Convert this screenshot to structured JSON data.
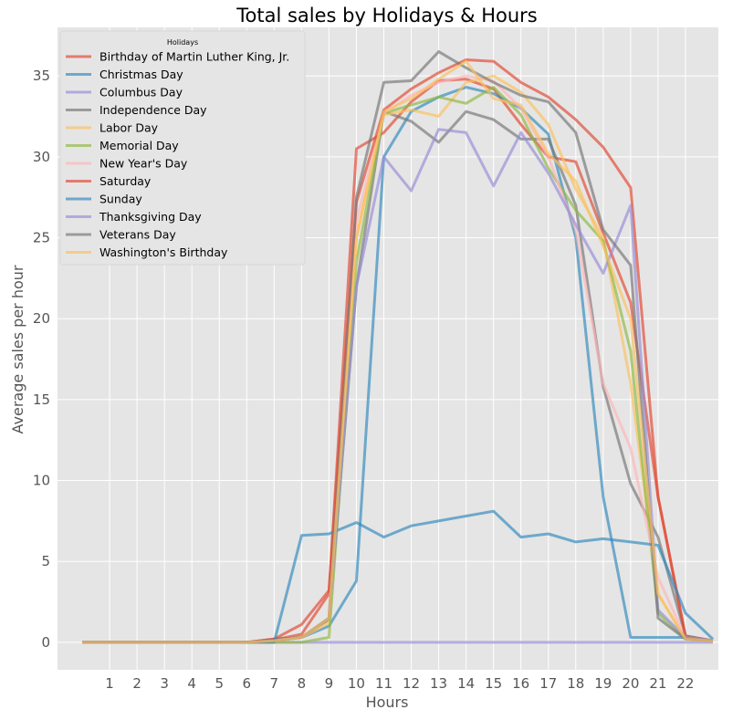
{
  "chart_data": {
    "type": "line",
    "title": "Total sales by Holidays & Hours",
    "xlabel": "Hours",
    "ylabel": "Average sales per hour",
    "xlim": [
      -0.9,
      23.2
    ],
    "ylim": [
      -1.7,
      38.0
    ],
    "x_ticks": [
      1,
      2,
      3,
      4,
      5,
      6,
      7,
      8,
      9,
      10,
      11,
      12,
      13,
      14,
      15,
      16,
      17,
      18,
      19,
      20,
      21,
      22
    ],
    "y_ticks": [
      0,
      5,
      10,
      15,
      20,
      25,
      30,
      35
    ],
    "grid": true,
    "background": "#e5e5e5",
    "legend": {
      "title": "Holidays",
      "position": "top-left"
    },
    "x": [
      0,
      1,
      2,
      3,
      4,
      5,
      6,
      7,
      8,
      9,
      10,
      11,
      12,
      13,
      14,
      15,
      16,
      17,
      18,
      19,
      20,
      21,
      22,
      23
    ],
    "series": [
      {
        "name": "Birthday of Martin Luther King, Jr.",
        "color": "#E24A33",
        "values": [
          0,
          0,
          0,
          0,
          0,
          0,
          0,
          0.15,
          0.5,
          3.0,
          30.5,
          31.5,
          33.4,
          34.7,
          34.8,
          34.2,
          32.0,
          30.0,
          29.7,
          25.3,
          21.0,
          9.0,
          0.4,
          0.1
        ]
      },
      {
        "name": "Christmas Day",
        "color": "#348ABD",
        "values": [
          0,
          0,
          0,
          0,
          0,
          0,
          0,
          0.1,
          0.3,
          1.0,
          3.8,
          30.0,
          32.8,
          33.7,
          34.3,
          33.9,
          33.0,
          31.4,
          25.0,
          9.0,
          0.3,
          0.3,
          0.3,
          0.1
        ]
      },
      {
        "name": "Columbus Day",
        "color": "#988ED5",
        "values": [
          0,
          0,
          0,
          0,
          0,
          0,
          0,
          0,
          0,
          0,
          0,
          0,
          0,
          0,
          0,
          0,
          0,
          0,
          0,
          0,
          0,
          0,
          0,
          0
        ]
      },
      {
        "name": "Independence Day",
        "color": "#777777",
        "values": [
          0,
          0,
          0,
          0,
          0,
          0,
          0,
          0.2,
          0.3,
          1.4,
          22.0,
          32.8,
          32.2,
          30.9,
          32.8,
          32.3,
          31.1,
          31.1,
          27.0,
          15.8,
          9.8,
          6.5,
          0.4,
          0.1
        ]
      },
      {
        "name": "Labor Day",
        "color": "#FBC15E",
        "values": [
          0,
          0,
          0,
          0,
          0,
          0,
          0,
          0.1,
          0.3,
          1.2,
          25.0,
          32.6,
          32.9,
          32.5,
          34.6,
          35.0,
          34.0,
          32.0,
          28.0,
          25.0,
          16.0,
          3.0,
          0.2,
          0.1
        ]
      },
      {
        "name": "Memorial Day",
        "color": "#8EBA42",
        "values": [
          0,
          0,
          0,
          0,
          0,
          0,
          0,
          0,
          0,
          0.3,
          23.5,
          32.7,
          33.2,
          33.7,
          33.3,
          34.3,
          32.6,
          29.3,
          26.7,
          24.8,
          18.0,
          1.8,
          0.2,
          0.1
        ]
      },
      {
        "name": "New Year's Day",
        "color": "#FFB5B8",
        "values": [
          0,
          0,
          0,
          0,
          0,
          0,
          0,
          0.1,
          0.3,
          1.5,
          26.0,
          32.7,
          33.8,
          34.6,
          35.0,
          34.7,
          33.0,
          30.0,
          25.5,
          16.0,
          12.0,
          4.0,
          0.3,
          0.1
        ]
      },
      {
        "name": "Saturday",
        "color": "#E24A33",
        "values": [
          0,
          0,
          0,
          0,
          0,
          0,
          0,
          0.2,
          1.1,
          3.2,
          27.2,
          32.9,
          34.2,
          35.2,
          36.0,
          35.9,
          34.6,
          33.7,
          32.3,
          30.6,
          28.1,
          9.0,
          0.3,
          0.1
        ]
      },
      {
        "name": "Sunday",
        "color": "#348ABD",
        "values": [
          0,
          0,
          0,
          0,
          0,
          0,
          0,
          0,
          6.6,
          6.7,
          7.4,
          6.5,
          7.2,
          7.5,
          7.8,
          8.1,
          6.5,
          6.7,
          6.2,
          6.4,
          6.2,
          6.0,
          1.8,
          0.2
        ]
      },
      {
        "name": "Thanksgiving Day",
        "color": "#988ED5",
        "values": [
          0,
          0,
          0,
          0,
          0,
          0,
          0,
          0.1,
          0.3,
          1.5,
          22.0,
          30.0,
          27.9,
          31.7,
          31.5,
          28.2,
          31.5,
          29.0,
          25.8,
          22.8,
          27.0,
          2.0,
          0.3,
          0.1
        ]
      },
      {
        "name": "Veterans Day",
        "color": "#777777",
        "values": [
          0,
          0,
          0,
          0,
          0,
          0,
          0,
          0.1,
          0.3,
          1.5,
          27.5,
          34.6,
          34.7,
          36.5,
          35.5,
          34.6,
          33.8,
          33.4,
          31.5,
          25.5,
          23.3,
          1.5,
          0.2,
          0.1
        ]
      },
      {
        "name": "Washington's Birthday",
        "color": "#FBC15E",
        "values": [
          0,
          0,
          0,
          0,
          0,
          0,
          0,
          0.1,
          0.3,
          1.5,
          25.0,
          32.8,
          33.6,
          34.8,
          35.9,
          33.6,
          33.2,
          30.2,
          28.5,
          24.5,
          20.0,
          3.0,
          0.2,
          0.1
        ]
      }
    ]
  }
}
